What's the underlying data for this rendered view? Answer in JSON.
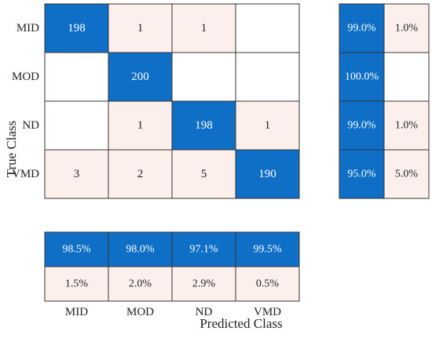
{
  "chart_data": {
    "type": "heatmap",
    "true_classes": [
      "MID",
      "MOD",
      "ND",
      "VMD"
    ],
    "predicted_classes": [
      "MID",
      "MOD",
      "ND",
      "VMD"
    ],
    "matrix": [
      [
        198,
        1,
        1,
        null
      ],
      [
        null,
        200,
        null,
        null
      ],
      [
        null,
        1,
        198,
        1
      ],
      [
        3,
        2,
        5,
        190
      ]
    ],
    "row_summary": [
      [
        "99.0%",
        "1.0%"
      ],
      [
        "100.0%",
        null
      ],
      [
        "99.0%",
        "1.0%"
      ],
      [
        "95.0%",
        "5.0%"
      ]
    ],
    "column_summary": [
      [
        "98.5%",
        "98.0%",
        "97.1%",
        "99.5%"
      ],
      [
        "1.5%",
        "2.0%",
        "2.9%",
        "0.5%"
      ]
    ],
    "ylabel": "True Class",
    "xlabel": "Predicted Class",
    "colors": {
      "correct": "#0f6fc6",
      "error": "#fdf0ec",
      "empty": "#ffffff",
      "border": "#333333",
      "text_on_dark": "#ffffff",
      "text_on_light": "#222222"
    }
  }
}
